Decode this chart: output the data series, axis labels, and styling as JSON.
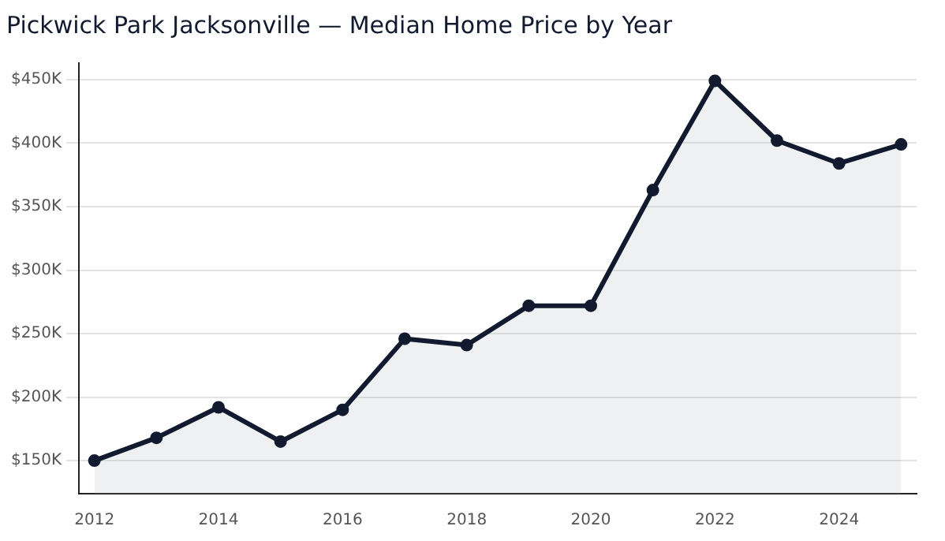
{
  "chart_data": {
    "type": "area",
    "title": "Pickwick Park Jacksonville — Median Home Price by Year",
    "x": [
      2012,
      2013,
      2014,
      2015,
      2016,
      2017,
      2018,
      2019,
      2020,
      2021,
      2022,
      2023,
      2024,
      2025
    ],
    "series": [
      {
        "color": "#111a2e",
        "values": [
          150000,
          168000,
          192000,
          165000,
          190000,
          246000,
          241000,
          272000,
          272000,
          363000,
          449000,
          402000,
          384000,
          399000
        ]
      }
    ],
    "xlim": [
      2011.75,
      2025.25
    ],
    "xticks": [
      2012,
      2014,
      2016,
      2018,
      2020,
      2022,
      2024
    ],
    "ylim": [
      124000,
      463000
    ],
    "yticks": [
      {
        "value": 150000,
        "label": "$150K"
      },
      {
        "value": 200000,
        "label": "$200K"
      },
      {
        "value": 250000,
        "label": "$250K"
      },
      {
        "value": 300000,
        "label": "$300K"
      },
      {
        "value": 350000,
        "label": "$350K"
      },
      {
        "value": 400000,
        "label": "$400K"
      },
      {
        "value": 450000,
        "label": "$450K"
      }
    ],
    "grid": "y",
    "legend": false,
    "marker": "circle",
    "line_style": "solid"
  }
}
